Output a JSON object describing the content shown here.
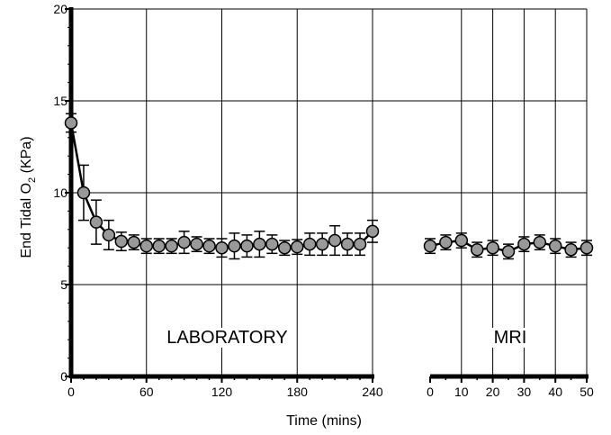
{
  "chart_data": {
    "type": "line",
    "ylabel": "End Tidal O",
    "ylabel_subscript": "2",
    "ylabel_suffix": " (KPa)",
    "xlabel": "Time (mins)",
    "ylim": [
      0,
      20
    ],
    "yticks": [
      "0",
      "5",
      "10",
      "15",
      "20"
    ],
    "grid": true,
    "color_marker": "#999999",
    "color_line": "#000000",
    "panels": [
      {
        "label": "LABORATORY",
        "xlim": [
          0,
          240
        ],
        "xticks": [
          "0",
          "60",
          "120",
          "180",
          "240"
        ],
        "points": [
          {
            "x": 0,
            "y": 13.8,
            "err": 0.5
          },
          {
            "x": 10,
            "y": 10.0,
            "err": 1.5
          },
          {
            "x": 20,
            "y": 8.4,
            "err": 1.2
          },
          {
            "x": 30,
            "y": 7.7,
            "err": 0.8
          },
          {
            "x": 40,
            "y": 7.35,
            "err": 0.5
          },
          {
            "x": 50,
            "y": 7.3,
            "err": 0.4
          },
          {
            "x": 60,
            "y": 7.1,
            "err": 0.4
          },
          {
            "x": 70,
            "y": 7.1,
            "err": 0.4
          },
          {
            "x": 80,
            "y": 7.1,
            "err": 0.4
          },
          {
            "x": 90,
            "y": 7.3,
            "err": 0.6
          },
          {
            "x": 100,
            "y": 7.2,
            "err": 0.4
          },
          {
            "x": 110,
            "y": 7.1,
            "err": 0.4
          },
          {
            "x": 120,
            "y": 7.0,
            "err": 0.5
          },
          {
            "x": 130,
            "y": 7.1,
            "err": 0.7
          },
          {
            "x": 140,
            "y": 7.1,
            "err": 0.6
          },
          {
            "x": 150,
            "y": 7.2,
            "err": 0.7
          },
          {
            "x": 160,
            "y": 7.2,
            "err": 0.5
          },
          {
            "x": 170,
            "y": 7.0,
            "err": 0.4
          },
          {
            "x": 180,
            "y": 7.05,
            "err": 0.4
          },
          {
            "x": 190,
            "y": 7.2,
            "err": 0.6
          },
          {
            "x": 200,
            "y": 7.2,
            "err": 0.6
          },
          {
            "x": 210,
            "y": 7.4,
            "err": 0.8
          },
          {
            "x": 220,
            "y": 7.2,
            "err": 0.6
          },
          {
            "x": 230,
            "y": 7.2,
            "err": 0.6
          },
          {
            "x": 240,
            "y": 7.9,
            "err": 0.6
          }
        ]
      },
      {
        "label": "MRI",
        "xlim": [
          0,
          50
        ],
        "xticks": [
          "0",
          "10",
          "20",
          "30",
          "40",
          "50"
        ],
        "points": [
          {
            "x": 0,
            "y": 7.1,
            "err": 0.4
          },
          {
            "x": 5,
            "y": 7.3,
            "err": 0.4
          },
          {
            "x": 10,
            "y": 7.4,
            "err": 0.4
          },
          {
            "x": 15,
            "y": 6.9,
            "err": 0.4
          },
          {
            "x": 20,
            "y": 7.0,
            "err": 0.4
          },
          {
            "x": 25,
            "y": 6.8,
            "err": 0.4
          },
          {
            "x": 30,
            "y": 7.2,
            "err": 0.4
          },
          {
            "x": 35,
            "y": 7.3,
            "err": 0.4
          },
          {
            "x": 40,
            "y": 7.1,
            "err": 0.4
          },
          {
            "x": 45,
            "y": 6.9,
            "err": 0.4
          },
          {
            "x": 50,
            "y": 7.0,
            "err": 0.4
          }
        ]
      }
    ]
  }
}
